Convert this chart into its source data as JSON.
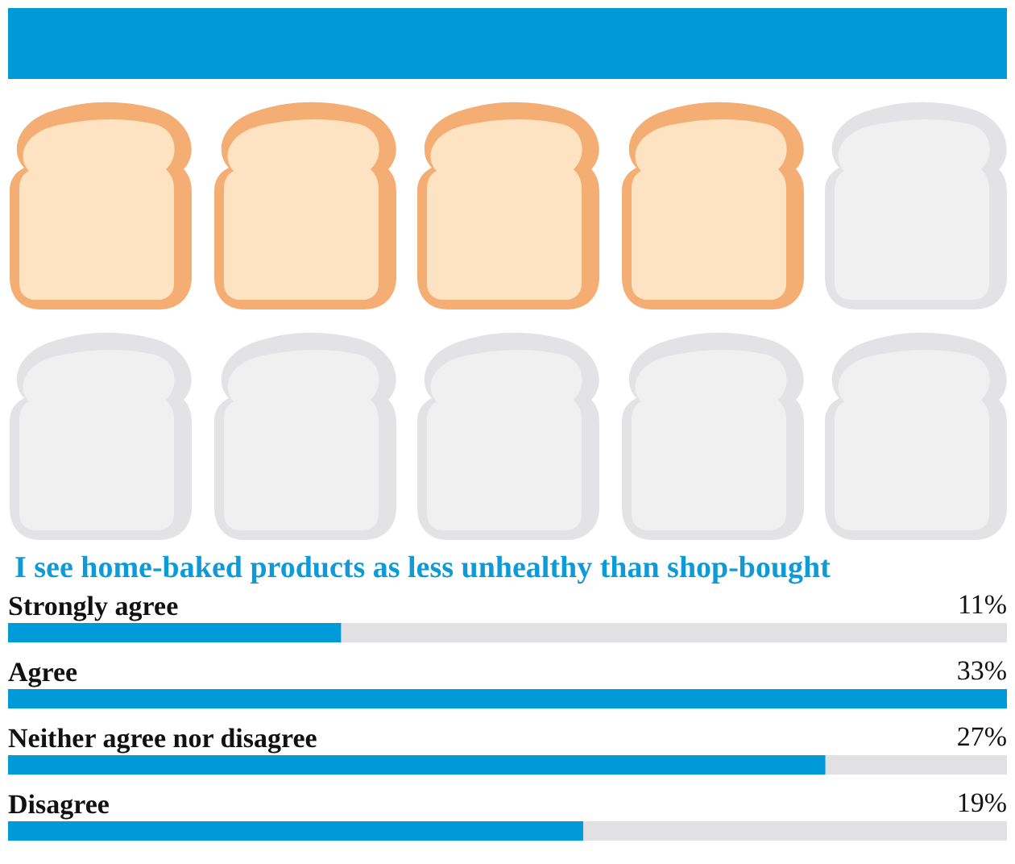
{
  "chart_data": {
    "type": "bar",
    "orientation": "horizontal",
    "title": "I see home-baked products as less unhealthy than shop-bought",
    "categories": [
      "Strongly agree",
      "Agree",
      "Neither agree nor disagree",
      "Disagree"
    ],
    "values": [
      11,
      33,
      27,
      19
    ],
    "value_labels": [
      "11%",
      "33%",
      "27%",
      "19%"
    ],
    "color": "#019ad9",
    "tick_labels": "y"
  }
}
